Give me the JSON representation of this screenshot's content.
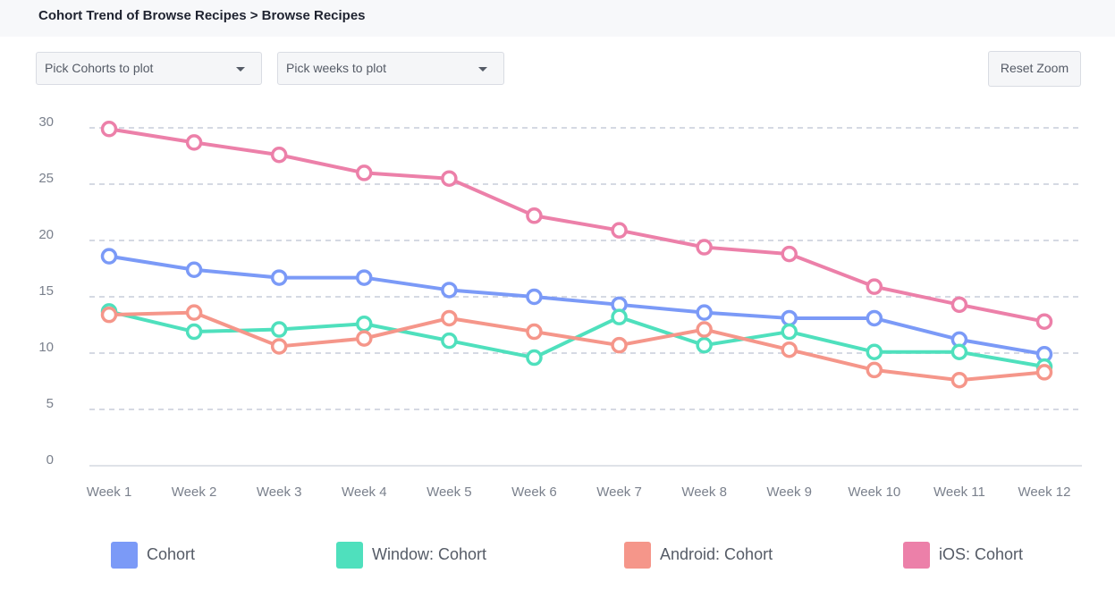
{
  "header": {
    "title": "Cohort Trend of Browse Recipes > Browse Recipes"
  },
  "controls": {
    "cohorts_dropdown": "Pick Cohorts to plot",
    "weeks_dropdown": "Pick weeks to plot",
    "reset_zoom": "Reset Zoom"
  },
  "chart_data": {
    "type": "line",
    "categories": [
      "Week 1",
      "Week 2",
      "Week 3",
      "Week 4",
      "Week 5",
      "Week 6",
      "Week 7",
      "Week 8",
      "Week 9",
      "Week 10",
      "Week 11",
      "Week 12"
    ],
    "yticks": [
      "0",
      "5",
      "10",
      "15",
      "20",
      "25",
      "30"
    ],
    "ylim": [
      0,
      30
    ],
    "grid": true,
    "legend_position": "bottom",
    "series": [
      {
        "name": "Cohort",
        "color": "#7b9af7",
        "values": [
          18.6,
          17.4,
          16.7,
          16.7,
          15.6,
          15.0,
          14.3,
          13.6,
          13.1,
          13.1,
          11.2,
          9.9
        ]
      },
      {
        "name": "Window: Cohort",
        "color": "#4fe0bd",
        "values": [
          13.7,
          11.9,
          12.1,
          12.6,
          11.1,
          9.6,
          13.2,
          10.7,
          11.9,
          10.1,
          10.1,
          8.8
        ]
      },
      {
        "name": "Android: Cohort",
        "color": "#f5968a",
        "values": [
          13.4,
          13.6,
          10.6,
          11.3,
          13.1,
          11.9,
          10.7,
          12.1,
          10.3,
          8.5,
          7.6,
          8.3
        ]
      },
      {
        "name": "iOS: Cohort",
        "color": "#ec80a9",
        "values": [
          29.9,
          28.7,
          27.6,
          26.0,
          25.5,
          22.2,
          20.9,
          19.4,
          18.8,
          15.9,
          14.3,
          12.8
        ]
      }
    ]
  }
}
